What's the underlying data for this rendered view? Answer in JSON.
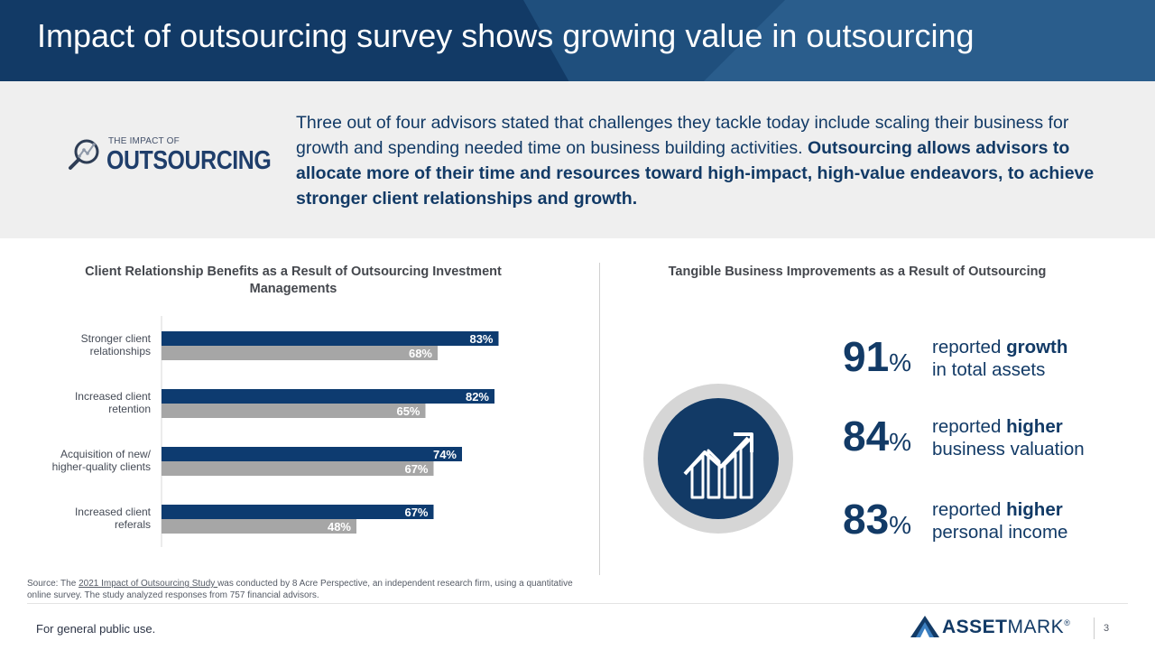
{
  "header": {
    "title": "Impact of outsourcing survey shows growing value in outsourcing"
  },
  "logo": {
    "small_text": "THE IMPACT OF",
    "big_text": "OUTSOURCING",
    "icon": "magnifier-chart-icon"
  },
  "intro": {
    "plain": "Three out of four advisors stated that challenges they tackle today include scaling their business for growth and spending needed time on business building activities. ",
    "bold": "Outsourcing allows advisors to allocate more of their time and resources toward high-impact, high-value endeavors, to achieve stronger client relationships and growth."
  },
  "chart_data": {
    "type": "bar",
    "orientation": "horizontal",
    "title": "Client Relationship Benefits as a Result of Outsourcing Investment Managements",
    "categories": [
      [
        "Stronger client",
        "relationships"
      ],
      [
        "Increased client",
        "retention"
      ],
      [
        "Acquisition of new/",
        "higher-quality clients"
      ],
      [
        "Increased client",
        "referals"
      ]
    ],
    "series": [
      {
        "color": "#0d3b70",
        "values": [
          83,
          82,
          74,
          67
        ]
      },
      {
        "color": "#a6a6a6",
        "values": [
          68,
          65,
          67,
          48
        ]
      }
    ],
    "value_suffix": "%",
    "xlim": [
      0,
      100
    ],
    "grid": false,
    "legend": "none"
  },
  "right_panel": {
    "title": "Tangible Business Improvements as a Result of Outsourcing",
    "icon": "growth-chart-icon",
    "stats": [
      {
        "value": "91",
        "unit": "%",
        "pre": "reported ",
        "bold": "growth",
        "line2": "in total assets"
      },
      {
        "value": "84",
        "unit": "%",
        "pre": "reported ",
        "bold": "higher",
        "line2": "business valuation"
      },
      {
        "value": "83",
        "unit": "%",
        "pre": "reported ",
        "bold": "higher",
        "line2": "personal income"
      }
    ]
  },
  "source": {
    "prefix": "Source: The ",
    "link": "2021 Impact of Outsourcing Study ",
    "rest": "was conducted by 8 Acre Perspective, an independent research firm, using a quantitative online survey. The study analyzed responses from 757 financial advisors."
  },
  "footer": {
    "note": "For general public use.",
    "brand_bold": "ASSET",
    "brand_rest": "MARK",
    "brand_mark": "®",
    "page": "3"
  },
  "colors": {
    "navy": "#123a66",
    "bar_primary": "#0d3b70",
    "bar_secondary": "#a6a6a6",
    "intro_bg": "#efefef"
  }
}
